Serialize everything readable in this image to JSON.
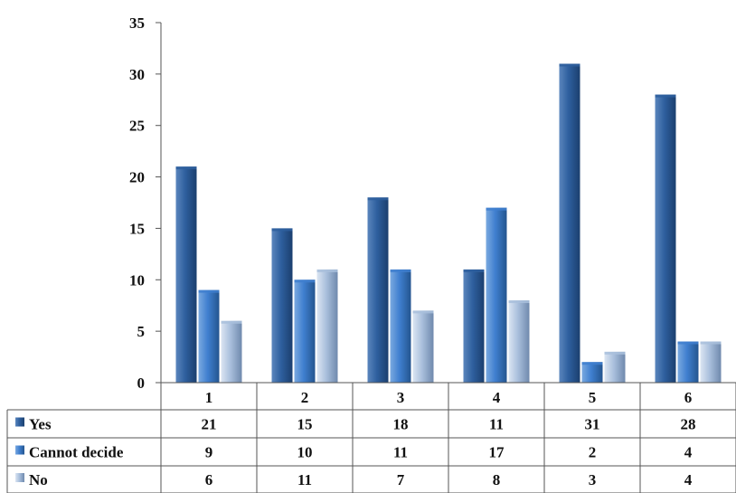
{
  "chart_data": {
    "type": "bar",
    "title": "",
    "xlabel": "",
    "ylabel": "",
    "ylim": [
      0,
      35
    ],
    "y_ticks": [
      0,
      5,
      10,
      15,
      20,
      25,
      30,
      35
    ],
    "grid": false,
    "legend": "data-table",
    "categories": [
      "1",
      "2",
      "3",
      "4",
      "5",
      "6"
    ],
    "series": [
      {
        "name": "Yes",
        "values": [
          21,
          15,
          18,
          11,
          31,
          28
        ],
        "color": "#2e5f9e"
      },
      {
        "name": "Cannot decide",
        "values": [
          9,
          10,
          11,
          17,
          2,
          4
        ],
        "color": "#3f7fcf"
      },
      {
        "name": "No",
        "values": [
          6,
          11,
          7,
          8,
          3,
          4
        ],
        "color": "#a9bfdc"
      }
    ]
  }
}
